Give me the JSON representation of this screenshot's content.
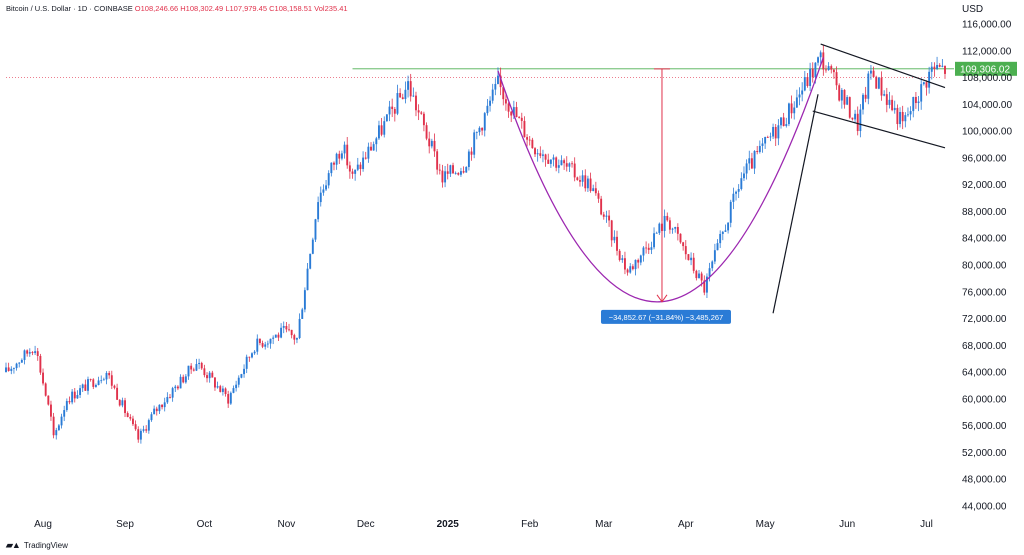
{
  "header": {
    "symbol_label": "Bitcoin / U.S. Dollar · 1D · COINBASE",
    "open": "O108,246.66",
    "high": "H108,302.49",
    "low": "L107,979.45",
    "close": "C108,158.51",
    "volume": "Vol235.41"
  },
  "footer": {
    "brand": "TradingView"
  },
  "chart_data": {
    "type": "candlestick",
    "currency_label": "USD",
    "price_axis_labels": [
      "116,000.00",
      "112,000.00",
      "108,000.00",
      "104,000.00",
      "100,000.00",
      "96,000.00",
      "92,000.00",
      "88,000.00",
      "84,000.00",
      "80,000.00",
      "76,000.00",
      "72,000.00",
      "68,000.00",
      "64,000.00",
      "60,000.00",
      "56,000.00",
      "52,000.00",
      "48,000.00",
      "44,000.00"
    ],
    "price_axis_values": [
      116000,
      112000,
      108000,
      104000,
      100000,
      96000,
      92000,
      88000,
      84000,
      80000,
      76000,
      72000,
      68000,
      64000,
      60000,
      56000,
      52000,
      48000,
      44000
    ],
    "time_axis_labels": [
      {
        "label": "Aug",
        "month": "Aug",
        "bold": false
      },
      {
        "label": "Sep",
        "month": "Sep",
        "bold": false
      },
      {
        "label": "Oct",
        "month": "Oct",
        "bold": false
      },
      {
        "label": "Nov",
        "month": "Nov",
        "bold": false
      },
      {
        "label": "Dec",
        "month": "Dec",
        "bold": false
      },
      {
        "label": "2025",
        "month": "Jan",
        "bold": true
      },
      {
        "label": "Feb",
        "month": "Feb",
        "bold": false
      },
      {
        "label": "Mar",
        "month": "Mar",
        "bold": false
      },
      {
        "label": "Apr",
        "month": "Apr",
        "bold": false
      },
      {
        "label": "May",
        "month": "May",
        "bold": false
      },
      {
        "label": "Jun",
        "month": "Jun",
        "bold": false
      },
      {
        "label": "Jul",
        "month": "Jul",
        "bold": false
      }
    ],
    "ylim": [
      42000,
      118000
    ],
    "current_price": 109306.02,
    "current_price_label": "109,306.02",
    "up_color": "#2a7bd6",
    "down_color": "#e0314b",
    "close_path": [
      {
        "d": "2024-07-18",
        "p": 64000
      },
      {
        "d": "2024-07-29",
        "p": 68000
      },
      {
        "d": "2024-08-04",
        "p": 57000
      },
      {
        "d": "2024-08-05",
        "p": 54000
      },
      {
        "d": "2024-08-10",
        "p": 60000
      },
      {
        "d": "2024-08-25",
        "p": 64000
      },
      {
        "d": "2024-09-06",
        "p": 54000
      },
      {
        "d": "2024-09-12",
        "p": 58000
      },
      {
        "d": "2024-09-28",
        "p": 65500
      },
      {
        "d": "2024-10-10",
        "p": 60000
      },
      {
        "d": "2024-10-20",
        "p": 68000
      },
      {
        "d": "2024-10-31",
        "p": 70000
      },
      {
        "d": "2024-11-05",
        "p": 69000
      },
      {
        "d": "2024-11-13",
        "p": 90000
      },
      {
        "d": "2024-11-22",
        "p": 98000
      },
      {
        "d": "2024-11-26",
        "p": 93000
      },
      {
        "d": "2024-12-05",
        "p": 99000
      },
      {
        "d": "2024-12-17",
        "p": 107000
      },
      {
        "d": "2024-12-30",
        "p": 93000
      },
      {
        "d": "2025-01-07",
        "p": 95000
      },
      {
        "d": "2025-01-20",
        "p": 107000
      },
      {
        "d": "2025-02-02",
        "p": 98000
      },
      {
        "d": "2025-02-24",
        "p": 92000
      },
      {
        "d": "2025-03-10",
        "p": 79000
      },
      {
        "d": "2025-03-25",
        "p": 87000
      },
      {
        "d": "2025-04-08",
        "p": 76500
      },
      {
        "d": "2025-04-22",
        "p": 93000
      },
      {
        "d": "2025-05-10",
        "p": 103000
      },
      {
        "d": "2025-05-22",
        "p": 111000
      },
      {
        "d": "2025-06-05",
        "p": 101000
      },
      {
        "d": "2025-06-10",
        "p": 109000
      },
      {
        "d": "2025-06-22",
        "p": 101000
      },
      {
        "d": "2025-07-03",
        "p": 109306
      }
    ],
    "drawings": {
      "resistance_line": {
        "color": "#4caf50",
        "price": 109306
      },
      "horizontal_dotted": {
        "color": "#e0314b",
        "price": 107979
      },
      "cup_curve": {
        "color": "#9c27b0",
        "start": {
          "d": "2025-01-20",
          "p": 109000
        },
        "bottom": {
          "d": "2025-03-22",
          "p": 74500
        },
        "end": {
          "d": "2025-05-23",
          "p": 111000
        }
      },
      "measure_arrow": {
        "color": "#e0314b",
        "date": "2025-03-23",
        "from": 109300,
        "to": 74500
      },
      "measure_label": "−34,852.67 (−31.84%) −3,485,267",
      "flag_upper": {
        "color": "#131722",
        "from": {
          "d": "2025-05-22",
          "p": 113000
        },
        "to": {
          "d": "2025-07-08",
          "p": 106500
        }
      },
      "flag_lower": {
        "color": "#131722",
        "from": {
          "d": "2025-05-19",
          "p": 103000
        },
        "to": {
          "d": "2025-07-08",
          "p": 97500
        }
      },
      "pole": {
        "color": "#131722",
        "from": {
          "d": "2025-05-04",
          "p": 72800
        },
        "to": {
          "d": "2025-05-21",
          "p": 105500
        }
      }
    }
  }
}
